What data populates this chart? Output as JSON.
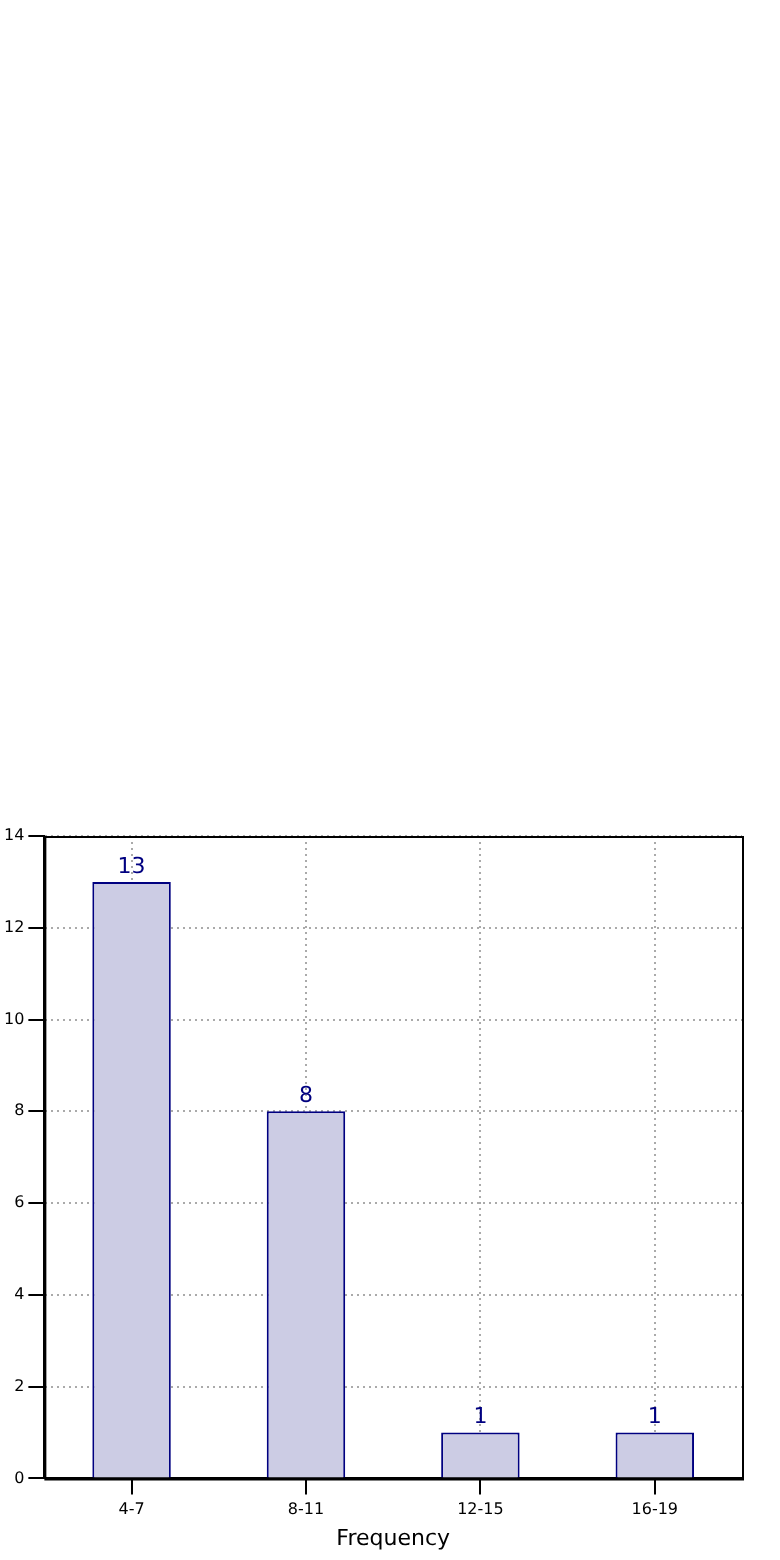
{
  "chart_data": {
    "type": "bar",
    "xlabel": "Frequency",
    "categories": [
      "4-7",
      "8-11",
      "12-15",
      "16-19"
    ],
    "series": [
      {
        "color": "#cccce4",
        "values": [
          13,
          8,
          1,
          1
        ]
      }
    ],
    "ylim": [
      0,
      14
    ],
    "yticks": [
      0,
      2,
      4,
      6,
      8,
      10,
      12,
      14
    ],
    "grid": true,
    "data_labels": true,
    "legend": false
  }
}
